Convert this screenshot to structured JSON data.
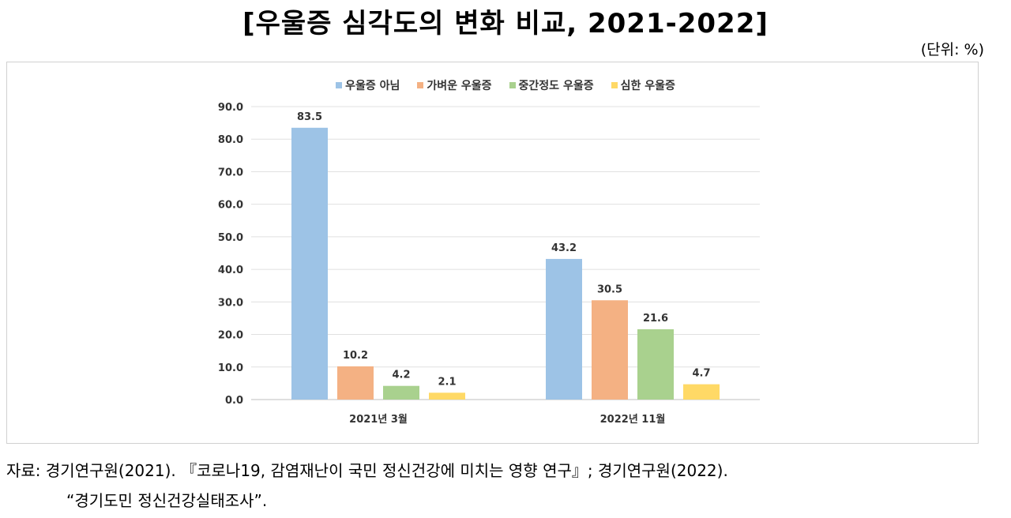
{
  "title": "[우울증 심각도의 변화 비교, 2021-2022]",
  "unit": "(단위: %)",
  "source_line1": "자료: 경기연구원(2021). 『코로나19, 감염재난이 국민 정신건강에 미치는 영향 연구』; 경기연구원(2022).",
  "source_line2": "“경기도민 정신건강실태조사”.",
  "chart_data": {
    "type": "bar",
    "categories": [
      "2021년 3월",
      "2022년 11월"
    ],
    "series": [
      {
        "name": "우울증 아님",
        "values": [
          83.5,
          43.2
        ],
        "color": "#9dc3e6"
      },
      {
        "name": "가벼운 우울증",
        "values": [
          10.2,
          30.5
        ],
        "color": "#f4b183"
      },
      {
        "name": "중간정도 우울증",
        "values": [
          4.2,
          21.6
        ],
        "color": "#a9d18e"
      },
      {
        "name": "심한 우울증",
        "values": [
          2.1,
          4.7
        ],
        "color": "#ffd966"
      }
    ],
    "ylim": [
      0,
      90
    ],
    "yticks": [
      "0.0",
      "10.0",
      "20.0",
      "30.0",
      "40.0",
      "50.0",
      "60.0",
      "70.0",
      "80.0",
      "90.0"
    ],
    "grid": true,
    "legend": "top",
    "data_labels": true
  }
}
